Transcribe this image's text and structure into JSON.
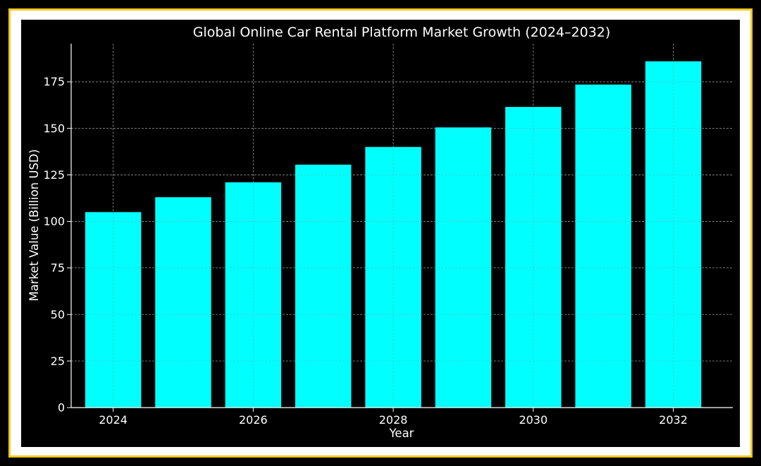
{
  "chart_data": {
    "type": "bar",
    "title": "Global Online Car Rental Platform Market Growth (2024–2032)",
    "xlabel": "Year",
    "ylabel": "Market Value (Billion USD)",
    "x": [
      2024,
      2025,
      2026,
      2027,
      2028,
      2029,
      2030,
      2031,
      2032
    ],
    "values": [
      105,
      113,
      121,
      130.5,
      140,
      150.5,
      161.5,
      173.5,
      186
    ],
    "xticks": [
      "2024",
      "2026",
      "2028",
      "2030",
      "2032"
    ],
    "yticks": [
      "0",
      "25",
      "50",
      "75",
      "100",
      "125",
      "150",
      "175"
    ],
    "xlim": [
      2023.4,
      2032.85
    ],
    "ylim": [
      0,
      195.5
    ],
    "grid": true,
    "colors": {
      "background": "#000000",
      "bar": "#00ffff",
      "text": "#ffffff",
      "grid": "#8c8c8c",
      "frame": "#f2c81e"
    }
  }
}
